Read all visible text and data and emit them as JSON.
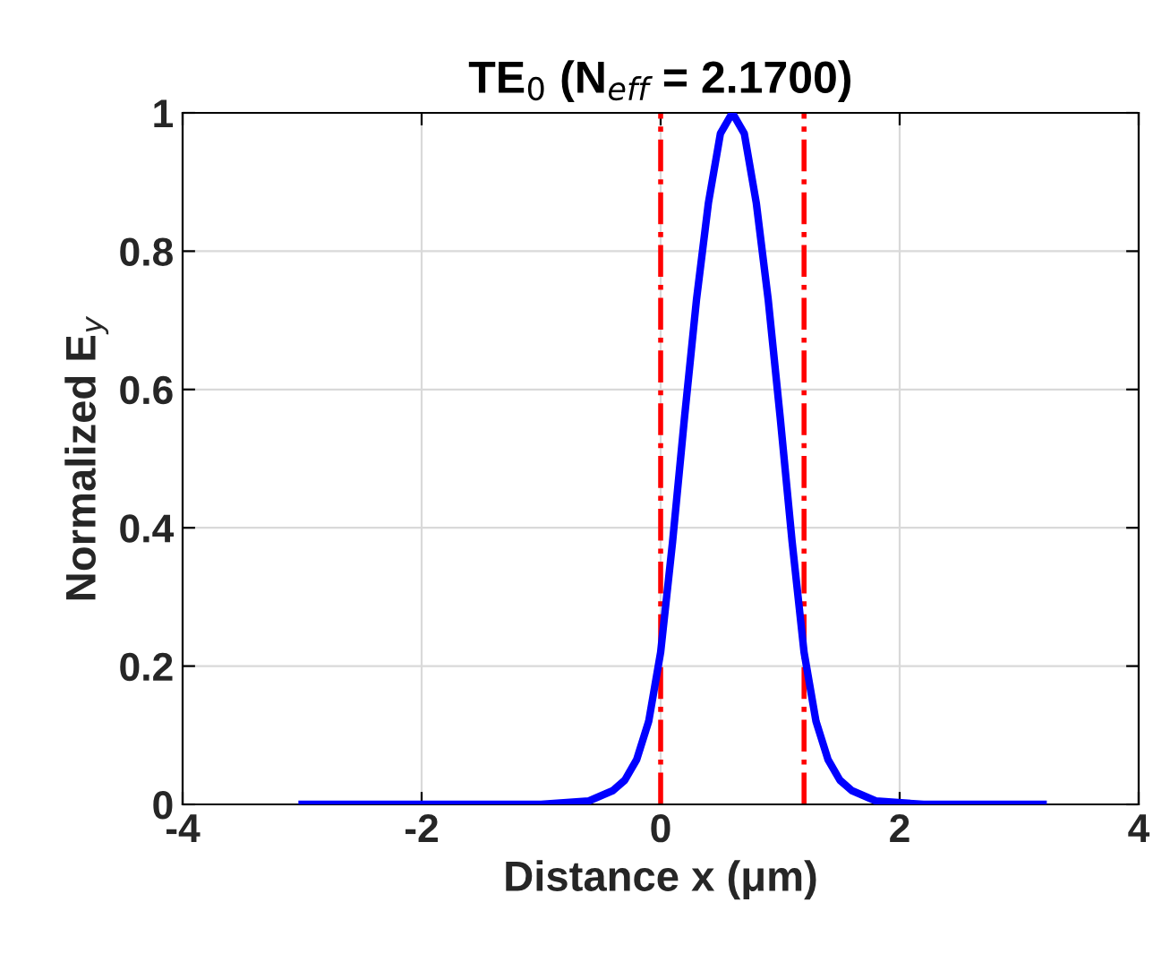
{
  "chart_data": {
    "type": "line",
    "title": "TE$_{0}$ (N$_{eff}$ = 2.1700)",
    "xlabel": "Distance x (μm)",
    "ylabel": "Normalized E$_{y}$",
    "series": [
      {
        "color": "#0000ff",
        "x": [
          -3,
          -1,
          -0.6,
          -0.4,
          -0.3,
          -0.2,
          -0.1,
          0,
          0.1,
          0.2,
          0.3,
          0.4,
          0.5,
          0.6,
          0.7,
          0.8,
          0.9,
          1.0,
          1.1,
          1.2,
          1.3,
          1.4,
          1.5,
          1.6,
          1.8,
          2.2,
          3.2
        ],
        "values": [
          0,
          0,
          0.005,
          0.02,
          0.035,
          0.065,
          0.12,
          0.22,
          0.38,
          0.56,
          0.73,
          0.87,
          0.97,
          1,
          0.97,
          0.87,
          0.73,
          0.56,
          0.38,
          0.22,
          0.12,
          0.065,
          0.035,
          0.02,
          0.005,
          0,
          0
        ]
      }
    ],
    "xlim": [
      -4,
      4
    ],
    "xticks": [
      -4,
      -2,
      0,
      2,
      4
    ],
    "ylim": [
      0,
      1
    ],
    "yticks": [
      0,
      0.2,
      0.4,
      0.6,
      0.8,
      1
    ],
    "ref_lines": [
      {
        "axis": "x",
        "value": 0,
        "color": "#ff0000",
        "line_style": "dashdot"
      },
      {
        "axis": "x",
        "value": 1.2,
        "color": "#ff0000",
        "line_style": "dashdot"
      }
    ],
    "grid": true,
    "line_style": "solid",
    "marker": "none"
  }
}
